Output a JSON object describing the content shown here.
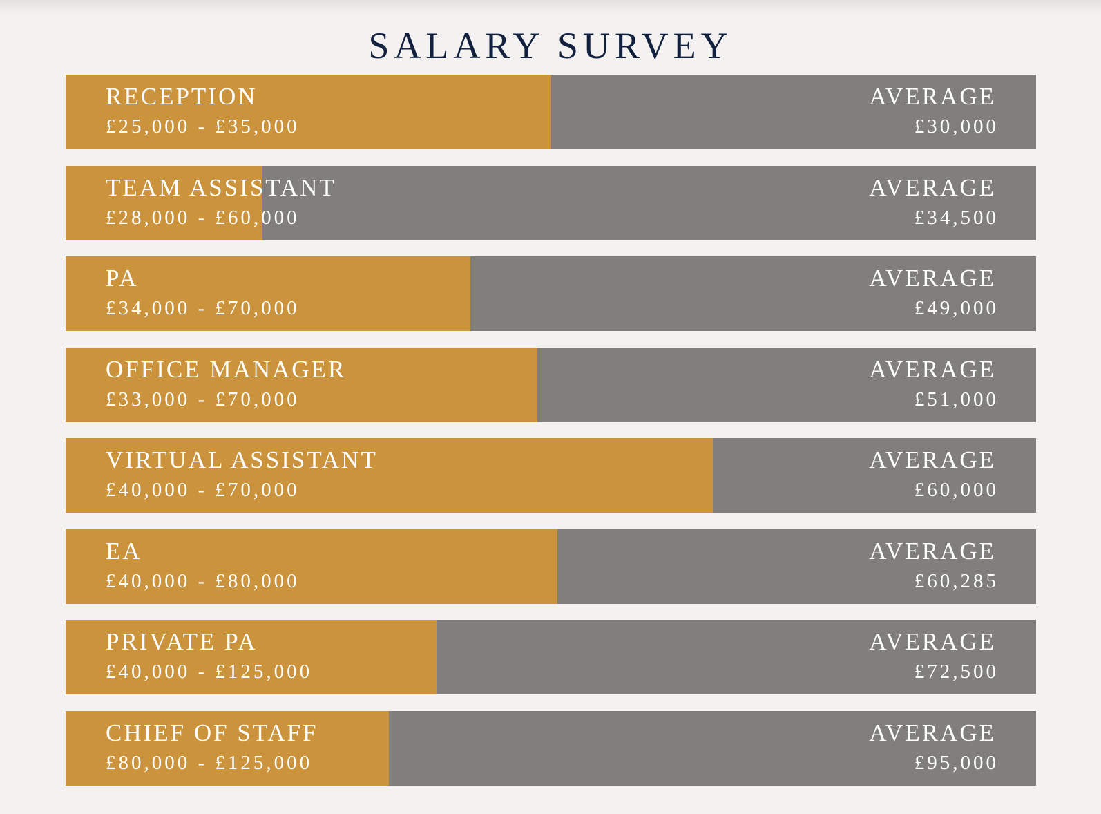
{
  "title": "SALARY SURVEY",
  "colors": {
    "background": "#f4f2f0",
    "title": "#13213f",
    "bar_fill": "#cb933b",
    "bar_track": "#807f7b",
    "text": "#ffffff"
  },
  "chart_data": {
    "type": "bar",
    "orientation": "horizontal",
    "title": "SALARY SURVEY",
    "average_label": "AVERAGE",
    "fill_unit": "fraction of bar width",
    "categories": [
      "RECEPTION",
      "TEAM ASSISTANT",
      "PA",
      "OFFICE MANAGER",
      "VIRTUAL ASSISTANT",
      "EA",
      "PRIVATE PA",
      "CHIEF OF STAFF"
    ],
    "rows": [
      {
        "role": "RECEPTION",
        "range": "£25,000 - £35,000",
        "average": "£30,000",
        "fill": 0.5
      },
      {
        "role": "TEAM ASSISTANT",
        "range": "£28,000 - £60,000",
        "average": "£34,500",
        "fill": 0.203
      },
      {
        "role": "PA",
        "range": "£34,000 - £70,000",
        "average": "£49,000",
        "fill": 0.417
      },
      {
        "role": "OFFICE MANAGER",
        "range": "£33,000 - £70,000",
        "average": "£51,000",
        "fill": 0.486
      },
      {
        "role": "VIRTUAL ASSISTANT",
        "range": "£40,000 - £70,000",
        "average": "£60,000",
        "fill": 0.667
      },
      {
        "role": "EA",
        "range": "£40,000 - £80,000",
        "average": "£60,285",
        "fill": 0.507
      },
      {
        "role": "PRIVATE PA",
        "range": "£40,000 - £125,000",
        "average": "£72,500",
        "fill": 0.382
      },
      {
        "role": "CHIEF OF STAFF",
        "range": "£80,000 - £125,000",
        "average": "£95,000",
        "fill": 0.333
      }
    ]
  }
}
